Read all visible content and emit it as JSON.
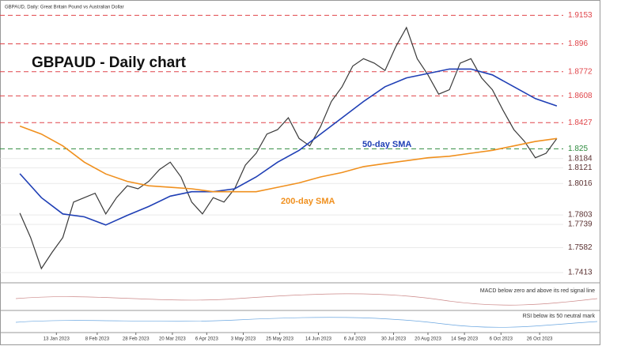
{
  "chart_data": {
    "type": "line",
    "subtitle": "GBPAUD, Daily: Great Britain Pound vs Australian Dollar",
    "title": "GBPAUD - Daily chart",
    "xlim": [
      -3,
      253
    ],
    "ylim": [
      1.736,
      1.923
    ],
    "xticks": [
      {
        "value": 17,
        "label": "13 Jan 2023"
      },
      {
        "value": 36,
        "label": "8 Feb 2023"
      },
      {
        "value": 54,
        "label": "28 Feb 2023"
      },
      {
        "value": 71,
        "label": "20 Mar 2023"
      },
      {
        "value": 87,
        "label": "6 Apr 2023"
      },
      {
        "value": 104,
        "label": "3 May 2023"
      },
      {
        "value": 121,
        "label": "25 May 2023"
      },
      {
        "value": 139,
        "label": "14 Jun 2023"
      },
      {
        "value": 156,
        "label": "6 Jul 2023"
      },
      {
        "value": 174,
        "label": "30 Jul 2023"
      },
      {
        "value": 190,
        "label": "20 Aug 2023"
      },
      {
        "value": 207,
        "label": "14 Sep 2023"
      },
      {
        "value": 224,
        "label": "6 Oct 2023"
      },
      {
        "value": 242,
        "label": "26 Oct 2023"
      }
    ],
    "levels": [
      {
        "value": 1.9153,
        "color": "#e0454a",
        "dashed": true
      },
      {
        "value": 1.896,
        "color": "#e0454a",
        "dashed": true
      },
      {
        "value": 1.8772,
        "color": "#e0454a",
        "dashed": true
      },
      {
        "value": 1.8608,
        "color": "#e0454a",
        "dashed": true
      },
      {
        "value": 1.8427,
        "color": "#e0454a",
        "dashed": true
      },
      {
        "value": 1.825,
        "color": "#2e8b3e",
        "dashed": true
      },
      {
        "value": 1.8184,
        "color": "#dddddd",
        "dashed": false
      },
      {
        "value": 1.8121,
        "color": "#dddddd",
        "dashed": false
      },
      {
        "value": 1.8016,
        "color": "#dddddd",
        "dashed": false
      },
      {
        "value": 1.7803,
        "color": "#dddddd",
        "dashed": false
      },
      {
        "value": 1.7739,
        "color": "#dddddd",
        "dashed": false
      },
      {
        "value": 1.7582,
        "color": "#dddddd",
        "dashed": false
      },
      {
        "value": 1.7413,
        "color": "#dddddd",
        "dashed": false
      }
    ],
    "series": [
      {
        "name": "GBPAUD",
        "color": "#3a3a3a",
        "x": [
          0,
          5,
          10,
          15,
          20,
          25,
          30,
          35,
          40,
          45,
          50,
          55,
          60,
          65,
          70,
          75,
          80,
          85,
          90,
          95,
          100,
          105,
          110,
          115,
          120,
          125,
          130,
          135,
          140,
          145,
          150,
          155,
          160,
          165,
          170,
          175,
          180,
          185,
          190,
          195,
          200,
          205,
          210,
          215,
          220,
          225,
          230,
          235,
          240,
          245,
          250
        ],
        "values": [
          1.7815,
          1.765,
          1.744,
          1.755,
          1.765,
          1.789,
          1.792,
          1.795,
          1.781,
          1.792,
          1.8,
          1.798,
          1.803,
          1.811,
          1.816,
          1.806,
          1.789,
          1.781,
          1.792,
          1.789,
          1.798,
          1.814,
          1.822,
          1.835,
          1.838,
          1.846,
          1.832,
          1.827,
          1.84,
          1.857,
          1.867,
          1.881,
          1.886,
          1.883,
          1.878,
          1.894,
          1.907,
          1.886,
          1.875,
          1.862,
          1.865,
          1.883,
          1.886,
          1.873,
          1.865,
          1.851,
          1.838,
          1.83,
          1.819,
          1.822,
          1.832
        ]
      },
      {
        "name": "50-day SMA",
        "color": "#1f3fb5",
        "x": [
          0,
          10,
          20,
          30,
          40,
          50,
          60,
          70,
          80,
          90,
          100,
          110,
          120,
          130,
          140,
          150,
          160,
          170,
          180,
          190,
          200,
          210,
          220,
          230,
          240,
          250
        ],
        "values": [
          1.8082,
          1.792,
          1.781,
          1.779,
          1.7735,
          1.78,
          1.786,
          1.793,
          1.796,
          1.796,
          1.798,
          1.806,
          1.816,
          1.824,
          1.835,
          1.846,
          1.857,
          1.867,
          1.873,
          1.876,
          1.879,
          1.879,
          1.875,
          1.867,
          1.859,
          1.854
        ]
      },
      {
        "name": "200-day SMA",
        "color": "#f0901e",
        "x": [
          0,
          10,
          20,
          30,
          40,
          50,
          60,
          70,
          80,
          90,
          100,
          110,
          120,
          130,
          140,
          150,
          160,
          170,
          180,
          190,
          200,
          210,
          220,
          230,
          240,
          250
        ],
        "values": [
          1.8404,
          1.835,
          1.827,
          1.816,
          1.808,
          1.803,
          1.8,
          1.799,
          1.798,
          1.796,
          1.796,
          1.796,
          1.799,
          1.802,
          1.806,
          1.809,
          1.813,
          1.815,
          1.817,
          1.819,
          1.82,
          1.822,
          1.824,
          1.827,
          1.83,
          1.832
        ]
      }
    ],
    "macd_note": "MACD below zero and above its red signal line",
    "rsi_note": "RSI below its 50 neutral mark"
  }
}
